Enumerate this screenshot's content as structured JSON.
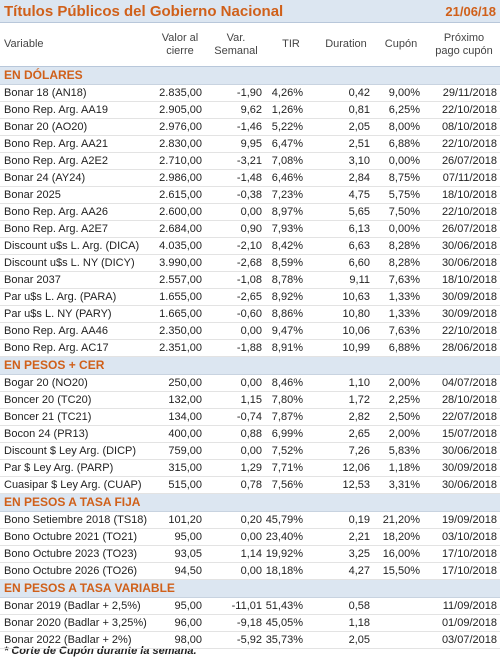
{
  "header": {
    "title": "Títulos Públicos del Gobierno Nacional",
    "date": "21/06/18"
  },
  "table": {
    "columns": [
      [
        "Variable"
      ],
      [
        "Valor al",
        "cierre"
      ],
      [
        "Var.",
        "Semanal"
      ],
      [
        "TIR"
      ],
      [
        "Duration"
      ],
      [
        "Cupón"
      ],
      [
        "Próximo",
        "pago cupón"
      ]
    ],
    "sections": [
      {
        "name": "EN DÓLARES",
        "rows": [
          [
            "Bonar 18 (AN18)",
            "2.835,00",
            "-1,90",
            "4,26%",
            "0,42",
            "9,00%",
            "29/11/2018"
          ],
          [
            "Bono Rep. Arg. AA19",
            "2.905,00",
            "9,62",
            "1,26%",
            "0,81",
            "6,25%",
            "22/10/2018"
          ],
          [
            "Bonar 20 (AO20)",
            "2.976,00",
            "-1,46",
            "5,22%",
            "2,05",
            "8,00%",
            "08/10/2018"
          ],
          [
            "Bono Rep. Arg. AA21",
            "2.830,00",
            "9,95",
            "6,47%",
            "2,51",
            "6,88%",
            "22/10/2018"
          ],
          [
            "Bono Rep. Arg. A2E2",
            "2.710,00",
            "-3,21",
            "7,08%",
            "3,10",
            "0,00%",
            "26/07/2018"
          ],
          [
            "Bonar 24 (AY24)",
            "2.986,00",
            "-1,48",
            "6,46%",
            "2,84",
            "8,75%",
            "07/11/2018"
          ],
          [
            "Bonar 2025",
            "2.615,00",
            "-0,38",
            "7,23%",
            "4,75",
            "5,75%",
            "18/10/2018"
          ],
          [
            "Bono Rep. Arg. AA26",
            "2.600,00",
            "0,00",
            "8,97%",
            "5,65",
            "7,50%",
            "22/10/2018"
          ],
          [
            "Bono Rep. Arg. A2E7",
            "2.684,00",
            "0,90",
            "7,93%",
            "6,13",
            "0,00%",
            "26/07/2018"
          ],
          [
            "Discount u$s L. Arg. (DICA)",
            "4.035,00",
            "-2,10",
            "8,42%",
            "6,63",
            "8,28%",
            "30/06/2018"
          ],
          [
            "Discount u$s L. NY (DICY)",
            "3.990,00",
            "-2,68",
            "8,59%",
            "6,60",
            "8,28%",
            "30/06/2018"
          ],
          [
            "Bonar 2037",
            "2.557,00",
            "-1,08",
            "8,78%",
            "9,11",
            "7,63%",
            "18/10/2018"
          ],
          [
            "Par u$s L. Arg. (PARA)",
            "1.655,00",
            "-2,65",
            "8,92%",
            "10,63",
            "1,33%",
            "30/09/2018"
          ],
          [
            "Par u$s L. NY (PARY)",
            "1.665,00",
            "-0,60",
            "8,86%",
            "10,80",
            "1,33%",
            "30/09/2018"
          ],
          [
            "Bono Rep. Arg. AA46",
            "2.350,00",
            "0,00",
            "9,47%",
            "10,06",
            "7,63%",
            "22/10/2018"
          ],
          [
            "Bono Rep. Arg. AC17",
            "2.351,00",
            "-1,88",
            "8,91%",
            "10,99",
            "6,88%",
            "28/06/2018"
          ]
        ]
      },
      {
        "name": "EN PESOS + CER",
        "rows": [
          [
            "Bogar 20 (NO20)",
            "250,00",
            "0,00",
            "8,46%",
            "1,10",
            "2,00%",
            "04/07/2018"
          ],
          [
            "Boncer 20 (TC20)",
            "132,00",
            "1,15",
            "7,80%",
            "1,72",
            "2,25%",
            "28/10/2018"
          ],
          [
            "Boncer 21 (TC21)",
            "134,00",
            "-0,74",
            "7,87%",
            "2,82",
            "2,50%",
            "22/07/2018"
          ],
          [
            "Bocon 24 (PR13)",
            "400,00",
            "0,88",
            "6,99%",
            "2,65",
            "2,00%",
            "15/07/2018"
          ],
          [
            "Discount $ Ley Arg. (DICP)",
            "759,00",
            "0,00",
            "7,52%",
            "7,26",
            "5,83%",
            "30/06/2018"
          ],
          [
            "Par $ Ley Arg. (PARP)",
            "315,00",
            "1,29",
            "7,71%",
            "12,06",
            "1,18%",
            "30/09/2018"
          ],
          [
            "Cuasipar $ Ley Arg. (CUAP)",
            "515,00",
            "0,78",
            "7,56%",
            "12,53",
            "3,31%",
            "30/06/2018"
          ]
        ]
      },
      {
        "name": "EN PESOS A TASA FIJA",
        "rows": [
          [
            "Bono Setiembre 2018 (TS18)",
            "101,20",
            "0,20",
            "45,79%",
            "0,19",
            "21,20%",
            "19/09/2018"
          ],
          [
            "Bono Octubre 2021 (TO21)",
            "95,00",
            "0,00",
            "23,40%",
            "2,21",
            "18,20%",
            "03/10/2018"
          ],
          [
            "Bono Octubre 2023 (TO23)",
            "93,05",
            "1,14",
            "19,92%",
            "3,25",
            "16,00%",
            "17/10/2018"
          ],
          [
            "Bono Octubre 2026 (TO26)",
            "94,50",
            "0,00",
            "18,18%",
            "4,27",
            "15,50%",
            "17/10/2018"
          ]
        ]
      },
      {
        "name": "EN PESOS A TASA VARIABLE",
        "rows": [
          [
            "Bonar 2019 (Badlar + 2,5%)",
            "95,00",
            "-11,01",
            "51,43%",
            "0,58",
            null,
            "11/09/2018"
          ],
          [
            "Bonar 2020 (Badlar + 3,25%)",
            "96,00",
            "-9,18",
            "45,05%",
            "1,18",
            null,
            "01/09/2018"
          ],
          [
            "Bonar 2022 (Badlar + 2%)",
            "98,00",
            "-5,92",
            "35,73%",
            "2,05",
            null,
            "03/07/2018"
          ]
        ]
      }
    ]
  },
  "footnote": "* Corte de Cupón durante la semana."
}
